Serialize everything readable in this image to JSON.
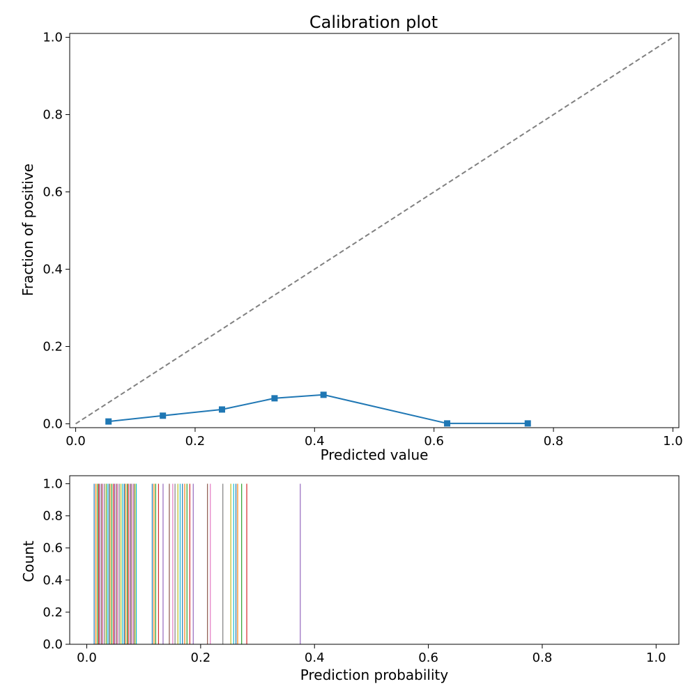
{
  "chart_data": [
    {
      "type": "line",
      "title": "Calibration plot",
      "xlabel": "Predicted value",
      "ylabel": "Fraction of positive",
      "xlim": [
        -0.01,
        1.01
      ],
      "ylim": [
        -0.01,
        1.01
      ],
      "x_ticks": [
        "0.0",
        "0.2",
        "0.4",
        "0.6",
        "0.8",
        "1.0"
      ],
      "y_ticks": [
        "0.0",
        "0.2",
        "0.4",
        "0.6",
        "0.8",
        "1.0"
      ],
      "grid": false,
      "reference_line": {
        "x": [
          0,
          1
        ],
        "y": [
          0,
          1
        ],
        "style": "dashed",
        "color": "#808080"
      },
      "series": [
        {
          "color": "#1f77b4",
          "marker": "square",
          "x": [
            0.055,
            0.146,
            0.245,
            0.333,
            0.415,
            0.622,
            0.757
          ],
          "y": [
            0.006,
            0.021,
            0.037,
            0.066,
            0.075,
            0.001,
            0.001
          ]
        }
      ]
    },
    {
      "type": "histogram",
      "xlabel": "Prediction probability",
      "ylabel": "Count",
      "xlim": [
        -0.03,
        1.04
      ],
      "ylim": [
        0.0,
        1.05
      ],
      "x_ticks": [
        "0.0",
        "0.2",
        "0.4",
        "0.6",
        "0.8",
        "1.0"
      ],
      "y_ticks": [
        "0.0",
        "0.2",
        "0.4",
        "0.6",
        "0.8",
        "1.0"
      ],
      "grid": false,
      "colors": [
        "#1f77b4",
        "#ff7f0e",
        "#2ca02c",
        "#d62728",
        "#9467bd",
        "#8c564b",
        "#e377c2",
        "#7f7f7f",
        "#bcbd22",
        "#17becf"
      ],
      "values": [
        0.013,
        0.016,
        0.019,
        0.021,
        0.023,
        0.026,
        0.028,
        0.031,
        0.034,
        0.036,
        0.039,
        0.041,
        0.044,
        0.047,
        0.049,
        0.052,
        0.054,
        0.057,
        0.06,
        0.063,
        0.066,
        0.068,
        0.071,
        0.073,
        0.076,
        0.078,
        0.081,
        0.083,
        0.085,
        0.087,
        0.115,
        0.118,
        0.121,
        0.126,
        0.134,
        0.145,
        0.151,
        0.155,
        0.16,
        0.164,
        0.168,
        0.172,
        0.176,
        0.181,
        0.187,
        0.212,
        0.217,
        0.239,
        0.253,
        0.258,
        0.262,
        0.265,
        0.272,
        0.281,
        0.375
      ],
      "count": 1.0
    }
  ]
}
